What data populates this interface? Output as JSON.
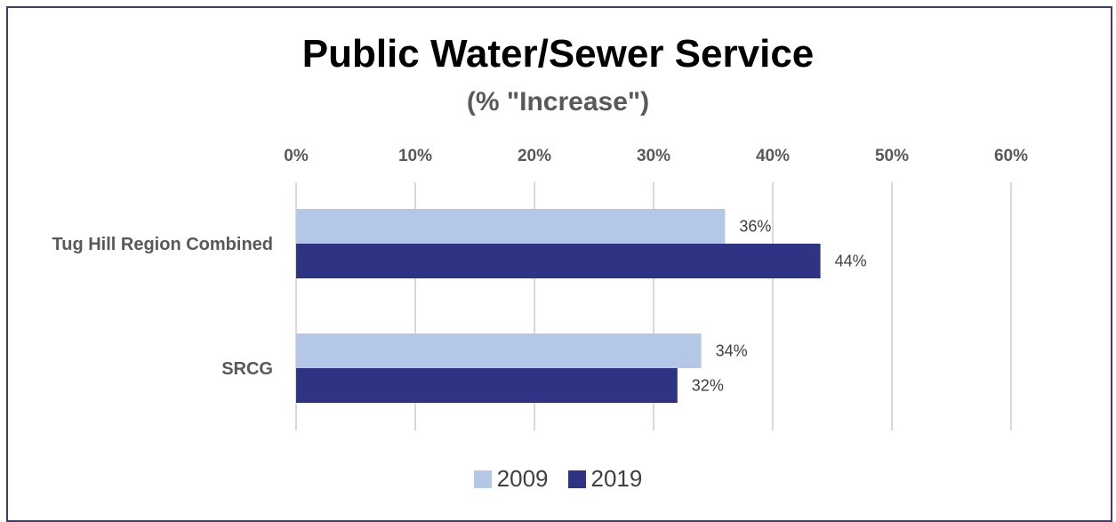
{
  "chart_data": {
    "type": "bar",
    "orientation": "horizontal",
    "title": "Public Water/Sewer Service",
    "subtitle": "(% \"Increase\")",
    "categories": [
      "Tug Hill Region Combined",
      "SRCG"
    ],
    "series": [
      {
        "name": "2009",
        "values": [
          36,
          34
        ],
        "labels": [
          "36%",
          "34%"
        ],
        "color": "#b4c7e7"
      },
      {
        "name": "2019",
        "values": [
          44,
          32
        ],
        "labels": [
          "44%",
          "32%"
        ],
        "color": "#2e3483"
      }
    ],
    "xlim": [
      0,
      60
    ],
    "ticks": [
      "0%",
      "10%",
      "20%",
      "30%",
      "40%",
      "50%",
      "60%"
    ],
    "tick_values": [
      0,
      10,
      20,
      30,
      40,
      50,
      60
    ],
    "axis_position": "top",
    "grid": true,
    "legend_position": "bottom"
  }
}
